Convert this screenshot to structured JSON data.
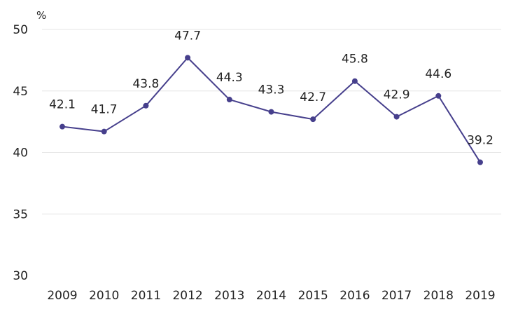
{
  "chart_data": {
    "type": "line",
    "title": "",
    "xlabel": "",
    "ylabel": "%",
    "categories": [
      "2009",
      "2010",
      "2011",
      "2012",
      "2013",
      "2014",
      "2015",
      "2016",
      "2017",
      "2018",
      "2019"
    ],
    "series": [
      {
        "values": [
          42.1,
          41.7,
          43.8,
          47.7,
          44.3,
          43.3,
          42.7,
          45.8,
          42.9,
          44.6,
          39.2
        ],
        "data_labels": [
          "42.1",
          "41.7",
          "43.8",
          "47.7",
          "44.3",
          "43.3",
          "42.7",
          "45.8",
          "42.9",
          "44.6",
          "39.2"
        ],
        "color": "#463f8c"
      }
    ],
    "yticks": [
      30,
      35,
      40,
      45,
      50
    ],
    "ytick_labels": [
      "30",
      "35",
      "40",
      "45",
      "50"
    ],
    "ylim": [
      30,
      50
    ],
    "grid": true,
    "legend": "none"
  }
}
